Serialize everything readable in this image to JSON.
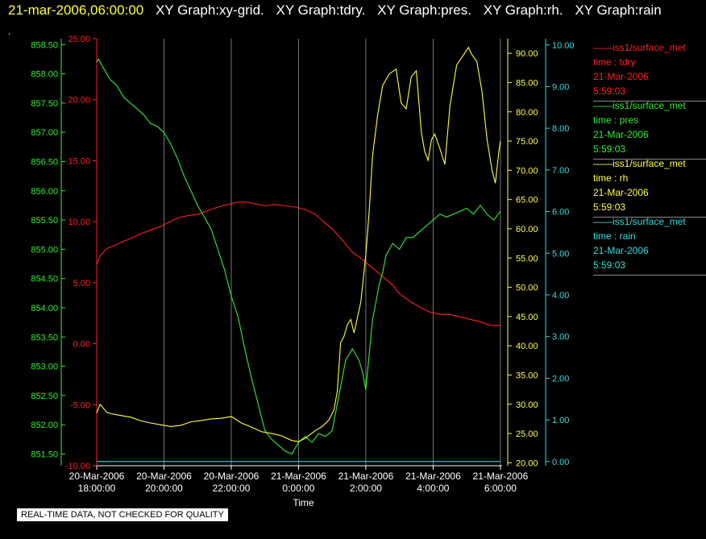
{
  "header": {
    "timestamp": "21-mar-2006,06:00:00",
    "graphs": [
      "XY Graph:xy-grid.",
      "XY Graph:tdry.",
      "XY Graph:pres.",
      "XY Graph:rh.",
      "XY Graph:rain"
    ],
    "dot": "."
  },
  "legend": [
    {
      "source": "iss1/surface_met",
      "var": "time : tdry",
      "date": "21-Mar-2006",
      "time": "5:59:03",
      "color": "#ff2020"
    },
    {
      "source": "iss1/surface_met",
      "var": "time : pres",
      "date": "21-Mar-2006",
      "time": "5:59:03",
      "color": "#33ee33"
    },
    {
      "source": "iss1/surface_met",
      "var": "time : rh",
      "date": "21-Mar-2006",
      "time": "5:59:03",
      "color": "#ffff44"
    },
    {
      "source": "iss1/surface_met",
      "var": "time : rain",
      "date": "21-Mar-2006",
      "time": "5:59:03",
      "color": "#33dddd"
    }
  ],
  "note": "REAL-TIME DATA, NOT CHECKED FOR QUALITY",
  "chart_data": {
    "type": "line",
    "xlabel": "Time",
    "xlim": [
      18,
      30.05
    ],
    "x_ticks": [
      {
        "x": 18,
        "date": "20-Mar-2006",
        "time": "18:00:00"
      },
      {
        "x": 20,
        "date": "20-Mar-2006",
        "time": "20:00:00"
      },
      {
        "x": 22,
        "date": "20-Mar-2006",
        "time": "22:00:00"
      },
      {
        "x": 24,
        "date": "21-Mar-2006",
        "time": "0:00:00"
      },
      {
        "x": 26,
        "date": "21-Mar-2006",
        "time": "2:00:00"
      },
      {
        "x": 28,
        "date": "21-Mar-2006",
        "time": "4:00:00"
      },
      {
        "x": 30,
        "date": "21-Mar-2006",
        "time": "6:00:00"
      }
    ],
    "grid": "vertical",
    "axes": {
      "pres": {
        "min": 851.3,
        "max": 858.6,
        "color": "#33ee33",
        "ticks": [
          "858.50",
          "858.00",
          "857.50",
          "857.00",
          "856.50",
          "856.00",
          "855.50",
          "855.00",
          "854.50",
          "854.00",
          "853.50",
          "853.00",
          "852.50",
          "852.00",
          "851.50"
        ]
      },
      "tdry": {
        "min": -10,
        "max": 25,
        "color": "#ff2020",
        "ticks": [
          "25.00",
          "20.00",
          "15.00",
          "10.00",
          "5.00",
          "0.00",
          "-5.00",
          "-10.00"
        ]
      },
      "rh": {
        "min": 19.5,
        "max": 92.5,
        "color": "#ffff44",
        "ticks": [
          "90.00",
          "85.00",
          "80.00",
          "75.00",
          "70.00",
          "65.00",
          "60.00",
          "55.00",
          "50.00",
          "45.00",
          "40.00",
          "35.00",
          "30.00",
          "25.00",
          "20.00"
        ]
      },
      "rain": {
        "min": -0.1,
        "max": 10.15,
        "color": "#33dddd",
        "ticks": [
          "10.00",
          "9.00",
          "8.00",
          "7.00",
          "6.00",
          "5.00",
          "4.00",
          "3.00",
          "2.00",
          "1.00",
          "0.00"
        ]
      }
    },
    "series": [
      {
        "name": "tdry",
        "axis": "tdry",
        "color": "#ff2020",
        "x": [
          18,
          18.1,
          18.3,
          18.5,
          18.8,
          19,
          19.3,
          19.6,
          19.9,
          20.1,
          20.4,
          20.7,
          21,
          21.3,
          21.6,
          21.9,
          22.2,
          22.5,
          22.8,
          23,
          23.3,
          23.6,
          23.9,
          24.2,
          24.5,
          24.7,
          25,
          25.3,
          25.6,
          25.9,
          26.2,
          26.5,
          26.8,
          27,
          27.3,
          27.6,
          27.9,
          28.2,
          28.5,
          28.8,
          29.1,
          29.4,
          29.7,
          30
        ],
        "y": [
          6.5,
          7.2,
          7.8,
          8.0,
          8.4,
          8.6,
          9.0,
          9.3,
          9.6,
          9.9,
          10.3,
          10.5,
          10.6,
          10.9,
          11.2,
          11.4,
          11.6,
          11.6,
          11.4,
          11.3,
          11.4,
          11.3,
          11.2,
          11.0,
          10.6,
          10.1,
          9.4,
          8.5,
          7.5,
          6.9,
          6.2,
          5.5,
          4.8,
          4.1,
          3.5,
          3.0,
          2.6,
          2.4,
          2.4,
          2.2,
          2.0,
          1.8,
          1.5,
          1.5
        ]
      },
      {
        "name": "pres",
        "axis": "pres",
        "color": "#33ee33",
        "x": [
          18,
          18.05,
          18.2,
          18.4,
          18.6,
          18.8,
          19,
          19.2,
          19.4,
          19.6,
          19.8,
          20,
          20.2,
          20.4,
          20.6,
          20.8,
          21,
          21.2,
          21.4,
          21.6,
          21.8,
          22,
          22.2,
          22.4,
          22.6,
          22.8,
          23,
          23.2,
          23.4,
          23.6,
          23.8,
          24,
          24.2,
          24.4,
          24.6,
          24.8,
          25,
          25.2,
          25.4,
          25.6,
          25.8,
          25.9,
          26,
          26.1,
          26.2,
          26.3,
          26.4,
          26.5,
          26.6,
          26.7,
          26.8,
          27,
          27.2,
          27.4,
          27.6,
          27.8,
          28,
          28.2,
          28.4,
          28.6,
          28.8,
          29,
          29.2,
          29.4,
          29.6,
          29.8,
          30
        ],
        "y": [
          858.2,
          858.25,
          858.1,
          857.9,
          857.8,
          857.6,
          857.5,
          857.4,
          857.3,
          857.15,
          857.1,
          857.0,
          856.8,
          856.55,
          856.25,
          856.0,
          855.75,
          855.55,
          855.35,
          855.0,
          854.65,
          854.2,
          853.85,
          853.3,
          852.8,
          852.35,
          851.9,
          851.75,
          851.65,
          851.55,
          851.5,
          851.7,
          851.8,
          851.7,
          851.85,
          851.8,
          851.9,
          852.5,
          853.1,
          853.3,
          853.1,
          852.9,
          852.6,
          853.2,
          853.8,
          854.1,
          854.4,
          854.6,
          854.9,
          855.0,
          855.1,
          855.0,
          855.2,
          855.2,
          855.3,
          855.4,
          855.5,
          855.6,
          855.55,
          855.6,
          855.65,
          855.7,
          855.6,
          855.75,
          855.6,
          855.5,
          855.65
        ]
      },
      {
        "name": "rh",
        "axis": "rh",
        "color": "#ffff44",
        "x": [
          18,
          18.1,
          18.3,
          18.5,
          18.8,
          19,
          19.3,
          19.6,
          19.9,
          20.2,
          20.5,
          20.8,
          21.1,
          21.4,
          21.7,
          22,
          22.3,
          22.6,
          22.9,
          23.2,
          23.5,
          23.8,
          24,
          24.2,
          24.5,
          24.7,
          24.9,
          25.05,
          25.15,
          25.25,
          25.35,
          25.45,
          25.55,
          25.65,
          25.75,
          25.85,
          26,
          26.1,
          26.2,
          26.35,
          26.5,
          26.7,
          26.9,
          27.05,
          27.2,
          27.35,
          27.5,
          27.65,
          27.75,
          27.85,
          27.95,
          28.05,
          28.2,
          28.35,
          28.5,
          28.7,
          28.9,
          29.05,
          29.15,
          29.3,
          29.45,
          29.6,
          29.75,
          29.85,
          29.95,
          30
        ],
        "y": [
          28.5,
          30,
          28.6,
          28.3,
          28,
          27.8,
          27.2,
          26.8,
          26.5,
          26.2,
          26.4,
          27,
          27.2,
          27.5,
          27.6,
          27.9,
          26.8,
          26.1,
          25.3,
          25.0,
          24.6,
          23.8,
          23.6,
          24.2,
          25.5,
          26.2,
          27.3,
          29,
          32.2,
          40.5,
          41.6,
          43.6,
          44.5,
          42.2,
          44.8,
          47.5,
          55.5,
          63,
          72.5,
          79.5,
          84.5,
          86.5,
          87.3,
          81.5,
          80.5,
          86.0,
          87.0,
          76.5,
          73.2,
          71.7,
          75.2,
          76.2,
          73.7,
          71.0,
          81.0,
          88.0,
          89.7,
          91.0,
          89.8,
          88.6,
          83.5,
          75.4,
          70.0,
          67.8,
          73.0,
          75.0
        ]
      },
      {
        "name": "rain",
        "axis": "rain",
        "color": "#33dddd",
        "x": [
          18,
          30
        ],
        "y": [
          0,
          0
        ]
      }
    ]
  }
}
